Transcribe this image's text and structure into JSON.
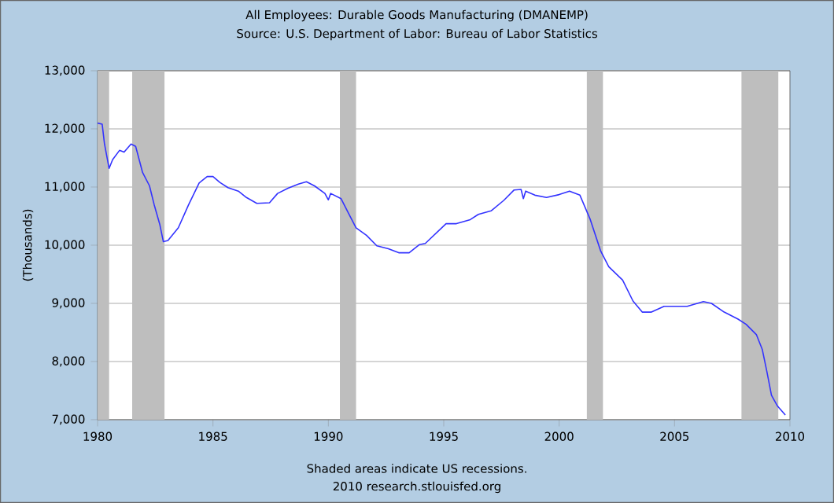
{
  "chart_data": {
    "type": "line",
    "title": "All Employees: Durable Goods Manufacturing (DMANEMP)",
    "subtitle": "Source: U.S. Department of Labor: Bureau of Labor Statistics",
    "ylabel": "(Thousands)",
    "annotations": [
      "Shaded areas indicate US recessions.",
      "2010 research.stlouisfed.org"
    ],
    "xlim": [
      1980,
      2010
    ],
    "xticks": [
      1980,
      1985,
      1990,
      1995,
      2000,
      2005,
      2010
    ],
    "ylim": [
      7000,
      13000
    ],
    "yticks": [
      {
        "value": 7000,
        "label": "7,000"
      },
      {
        "value": 8000,
        "label": "8,000"
      },
      {
        "value": 9000,
        "label": "9,000"
      },
      {
        "value": 10000,
        "label": "10,000"
      },
      {
        "value": 11000,
        "label": "11,000"
      },
      {
        "value": 12000,
        "label": "12,000"
      },
      {
        "value": 13000,
        "label": "13,000"
      }
    ],
    "grid": "y",
    "line_style": "solid",
    "bands": [
      {
        "axis": "x",
        "from": 1980.0,
        "to": 1980.5,
        "color": "#bebebe"
      },
      {
        "axis": "x",
        "from": 1981.5,
        "to": 1982.9,
        "color": "#bebebe"
      },
      {
        "axis": "x",
        "from": 1990.5,
        "to": 1991.2,
        "color": "#bebebe"
      },
      {
        "axis": "x",
        "from": 2001.2,
        "to": 2001.9,
        "color": "#bebebe"
      },
      {
        "axis": "x",
        "from": 2007.9,
        "to": 2009.5,
        "color": "#bebebe"
      }
    ],
    "series": [
      {
        "color": "#3333ff",
        "x": [
          1980.0,
          1980.2,
          1980.3,
          1980.5,
          1980.65,
          1980.95,
          1981.15,
          1981.45,
          1981.65,
          1981.95,
          1982.25,
          1982.45,
          1982.7,
          1982.85,
          1983.05,
          1983.5,
          1983.95,
          1984.4,
          1984.75,
          1985.0,
          1985.3,
          1985.65,
          1986.1,
          1986.45,
          1986.9,
          1987.45,
          1987.8,
          1988.25,
          1988.7,
          1989.05,
          1989.4,
          1989.85,
          1990.0,
          1990.1,
          1990.55,
          1990.9,
          1991.2,
          1991.65,
          1992.1,
          1992.6,
          1993.05,
          1993.5,
          1993.95,
          1994.2,
          1995.1,
          1995.55,
          1996.15,
          1996.5,
          1997.05,
          1997.6,
          1998.05,
          1998.35,
          1998.45,
          1998.55,
          1998.95,
          1999.45,
          2000.0,
          2000.45,
          2000.9,
          2001.35,
          2001.8,
          2002.15,
          2002.75,
          2003.2,
          2003.6,
          2004.0,
          2004.55,
          2005.1,
          2005.55,
          2006.25,
          2006.6,
          2007.15,
          2007.75,
          2008.1,
          2008.55,
          2008.8,
          2009.0,
          2009.2,
          2009.45,
          2009.8
        ],
        "values": [
          12100,
          12080,
          11740,
          11320,
          11470,
          11630,
          11600,
          11740,
          11700,
          11250,
          11020,
          10700,
          10350,
          10060,
          10080,
          10300,
          10700,
          11070,
          11180,
          11180,
          11080,
          10990,
          10930,
          10820,
          10720,
          10730,
          10890,
          10980,
          11050,
          11090,
          11020,
          10890,
          10780,
          10890,
          10800,
          10530,
          10300,
          10170,
          9990,
          9940,
          9870,
          9870,
          10010,
          10030,
          10370,
          10370,
          10440,
          10530,
          10590,
          10770,
          10950,
          10960,
          10800,
          10930,
          10860,
          10820,
          10870,
          10930,
          10860,
          10440,
          9900,
          9630,
          9400,
          9040,
          8850,
          8850,
          8950,
          8950,
          8950,
          9030,
          9000,
          8850,
          8730,
          8640,
          8460,
          8210,
          7830,
          7420,
          7240,
          7080
        ]
      }
    ]
  }
}
